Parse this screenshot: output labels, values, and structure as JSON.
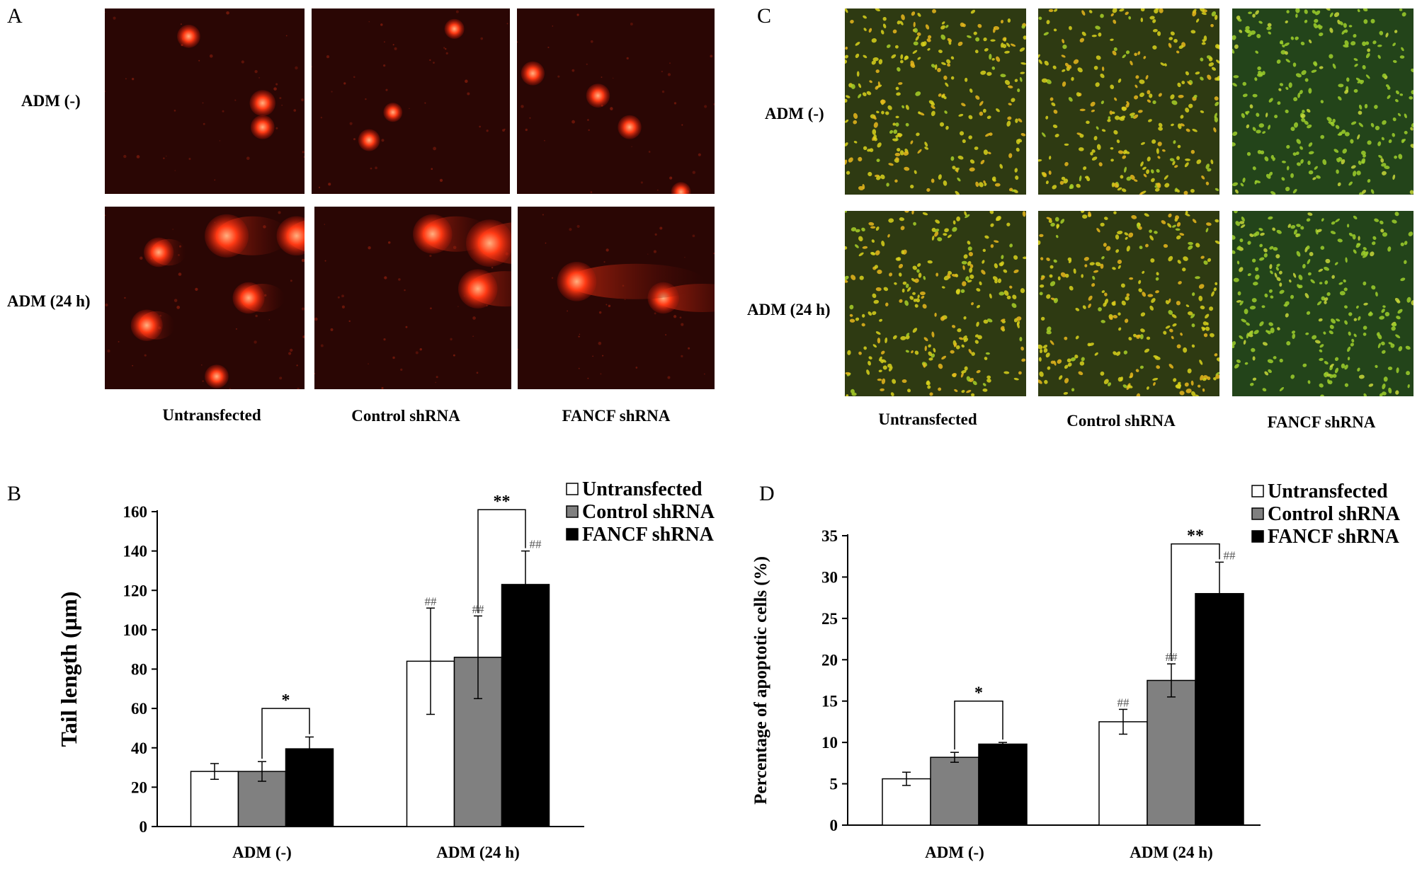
{
  "panels": {
    "A": {
      "letter": "A",
      "row_labels": [
        "ADM (-)",
        "ADM (24 h)"
      ],
      "col_labels": [
        "Untransfected",
        "Control shRNA",
        "FANCF shRNA"
      ]
    },
    "C": {
      "letter": "C",
      "row_labels": [
        "ADM (-)",
        "ADM (24 h)"
      ],
      "col_labels": [
        "Untransfected",
        "Control shRNA",
        "FANCF shRNA"
      ]
    },
    "B": {
      "letter": "B"
    },
    "D": {
      "letter": "D"
    }
  },
  "colors": {
    "untransfected": "#ffffff",
    "control": "#808080",
    "fancf": "#000000",
    "comet_bg": "#2a0604",
    "comet": "#ff3a14",
    "cell_bg": "#2e3a12",
    "cell": "#d8d21c"
  },
  "chart_data": [
    {
      "type": "bar",
      "ylabel": "Tail length (µm)",
      "categories": [
        "ADM (-)",
        "ADM (24 h)"
      ],
      "ylim": [
        0,
        160
      ],
      "yticks": [
        0,
        20,
        40,
        60,
        80,
        100,
        120,
        140,
        160
      ],
      "legend": "top-right",
      "series": [
        {
          "name": "Untransfected",
          "values": [
            28,
            84
          ],
          "errors": [
            4,
            27
          ],
          "marks": [
            "",
            "##"
          ]
        },
        {
          "name": "Control shRNA",
          "values": [
            28,
            86
          ],
          "errors": [
            5,
            21
          ],
          "marks": [
            "",
            "##"
          ]
        },
        {
          "name": "FANCF shRNA",
          "values": [
            39.5,
            123
          ],
          "errors": [
            6,
            17
          ],
          "marks": [
            "",
            "##"
          ]
        }
      ],
      "significance": [
        {
          "category": "ADM (-)",
          "from": "Control shRNA",
          "to": "FANCF shRNA",
          "label": "*",
          "y": 60
        },
        {
          "category": "ADM (24 h)",
          "from": "Control shRNA",
          "to": "FANCF shRNA",
          "label": "**",
          "y": 161
        }
      ]
    },
    {
      "type": "bar",
      "ylabel": "Percentage of apoptotic cells (%)",
      "categories": [
        "ADM (-)",
        "ADM (24 h)"
      ],
      "ylim": [
        0,
        35
      ],
      "yticks": [
        0,
        5,
        10,
        15,
        20,
        25,
        30,
        35
      ],
      "legend": "top-right",
      "series": [
        {
          "name": "Untransfected",
          "values": [
            5.6,
            12.5
          ],
          "errors": [
            0.8,
            1.5
          ],
          "marks": [
            "",
            "##"
          ]
        },
        {
          "name": "Control shRNA",
          "values": [
            8.2,
            17.5
          ],
          "errors": [
            0.6,
            2
          ],
          "marks": [
            "",
            "##"
          ]
        },
        {
          "name": "FANCF shRNA",
          "values": [
            9.8,
            28
          ],
          "errors": [
            0.2,
            3.8
          ],
          "marks": [
            "",
            "##"
          ]
        }
      ],
      "significance": [
        {
          "category": "ADM (-)",
          "from": "Control shRNA",
          "to": "FANCF shRNA",
          "label": "*",
          "y": 15
        },
        {
          "category": "ADM (24 h)",
          "from": "Control shRNA",
          "to": "FANCF shRNA",
          "label": "**",
          "y": 34
        }
      ]
    }
  ]
}
